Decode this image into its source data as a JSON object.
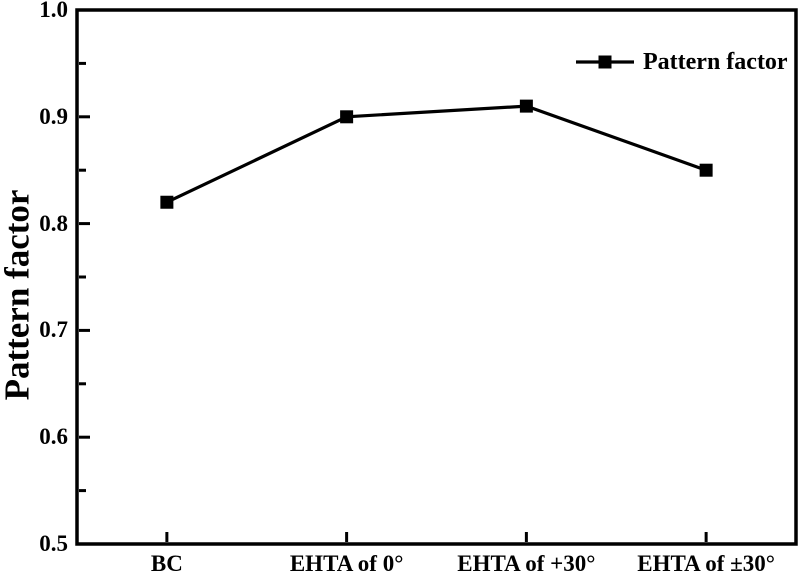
{
  "chart_data": {
    "type": "line",
    "title": "",
    "categories": [
      "BC",
      "EHTA of 0°",
      "EHTA of +30°",
      "EHTA of ±30°"
    ],
    "series": [
      {
        "name": "Pattern factor",
        "values": [
          0.82,
          0.9,
          0.91,
          0.85
        ],
        "marker": "filled-square",
        "color": "#000000"
      }
    ],
    "xlabel": "",
    "ylabel": "Pattern factor",
    "ylim": [
      0.5,
      1.0
    ],
    "ytick_interval": 0.1,
    "minor_tick_interval": 0.05,
    "ytick_labels": [
      "0.5",
      "0.6",
      "0.7",
      "0.8",
      "0.9",
      "1.0"
    ],
    "grid": false,
    "legend": {
      "position": "top-right-inside",
      "entries": [
        "Pattern factor"
      ]
    },
    "colors": {
      "axis": "#000000",
      "text": "#000000",
      "series": "#000000",
      "background": "#ffffff"
    }
  }
}
